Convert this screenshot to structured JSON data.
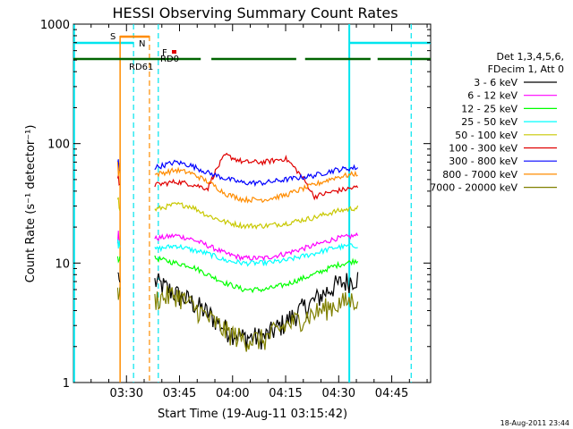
{
  "chart_data": {
    "type": "line",
    "title": "HESSI Observing Summary Count Rates",
    "xlabel": "Start Time (19-Aug-11 03:15:42)",
    "ylabel": "Count Rate (s⁻¹ detector⁻¹)",
    "yscale": "log",
    "ylim": [
      1,
      1000
    ],
    "xlim_minutes_after_0315": [
      0,
      101
    ],
    "x_ticks": [
      {
        "label": "03:30",
        "minutes": 15
      },
      {
        "label": "03:45",
        "minutes": 30
      },
      {
        "label": "04:00",
        "minutes": 45
      },
      {
        "label": "04:15",
        "minutes": 60
      },
      {
        "label": "04:30",
        "minutes": 75
      },
      {
        "label": "04:45",
        "minutes": 90
      }
    ],
    "y_ticks": [
      {
        "label": "1",
        "value": 1
      },
      {
        "label": "10",
        "value": 10
      },
      {
        "label": "100",
        "value": 100
      },
      {
        "label": "1000",
        "value": 1000
      }
    ],
    "legend_header": [
      "Det 1,3,4,5,6,",
      "FDecim 1, Att 0"
    ],
    "legend_position": "right",
    "series": [
      {
        "name": "3 - 6 keV",
        "color": "#000000",
        "base": [
          7,
          5.5,
          4.8,
          3.8,
          2.8,
          2.4,
          2.4,
          3.2,
          4.8,
          6.5,
          7.5
        ]
      },
      {
        "name": "6 - 12 keV",
        "color": "#ff00ff",
        "base": [
          16,
          17,
          16,
          14,
          12,
          11,
          11,
          12,
          14,
          16,
          17
        ]
      },
      {
        "name": "12 - 25 keV",
        "color": "#00ff00",
        "base": [
          11,
          10,
          9.5,
          8,
          6.8,
          6,
          6,
          6.6,
          8,
          9.5,
          10.5
        ]
      },
      {
        "name": "25 - 50 keV",
        "color": "#00ffff",
        "base": [
          13,
          14,
          13,
          12,
          10.5,
          10,
          10,
          10.5,
          12,
          13.5,
          14
        ]
      },
      {
        "name": "50 - 100 keV",
        "color": "#c8c800",
        "base": [
          28,
          31,
          30,
          25,
          22,
          20.5,
          20.5,
          21.5,
          24,
          27,
          29
        ]
      },
      {
        "name": "100 - 300 keV",
        "color": "#e00000",
        "base": [
          45,
          48,
          46,
          42,
          80,
          70,
          70,
          75,
          36,
          40,
          43
        ]
      },
      {
        "name": "300 - 800 keV",
        "color": "#0000ff",
        "base": [
          63,
          70,
          66,
          57,
          51,
          47,
          47,
          50,
          54,
          60,
          63
        ]
      },
      {
        "name": "800 - 7000 keV",
        "color": "#ff8c00",
        "base": [
          55,
          60,
          57,
          48,
          38,
          34,
          34,
          37,
          45,
          52,
          56
        ]
      },
      {
        "name": "7000 - 20000 keV",
        "color": "#808000",
        "base": [
          5,
          5.5,
          4.5,
          3.5,
          2.7,
          2.3,
          2.3,
          3,
          3.8,
          4.5,
          5
        ]
      }
    ],
    "series_x_minutes": [
      23,
      29,
      33,
      38,
      43,
      48,
      54,
      60,
      68,
      74,
      80
    ],
    "flag_labels": {
      "s": "S",
      "n": "N",
      "f": "F",
      "rd0": "RD0",
      "rd61": "RD61"
    },
    "colors": {
      "saa": "#ff8c00",
      "night": "#00e5ee",
      "rd0": "#006400",
      "flare": "#e00000"
    }
  },
  "timestamp": "18-Aug-2011 23:44"
}
